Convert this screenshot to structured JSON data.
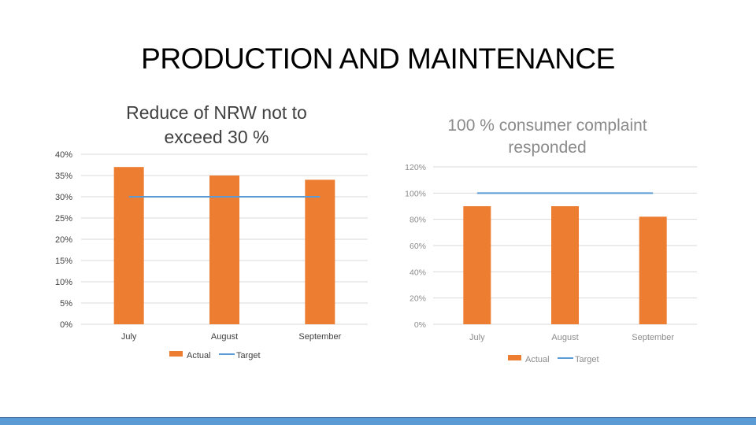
{
  "page": {
    "title": "PRODUCTION AND MAINTENANCE"
  },
  "colors": {
    "bar": "#ED7D31",
    "target_line": "#5B9BD5",
    "grid": "#D9D9D9",
    "footer_bar": "#5B9BD5"
  },
  "chart_data": [
    {
      "type": "bar",
      "title_lines": [
        "Reduce of NRW not to",
        "exceed 30 %"
      ],
      "categories": [
        "July",
        "August",
        "September"
      ],
      "series": [
        {
          "name": "Actual",
          "kind": "bar",
          "values": [
            37,
            35,
            34
          ]
        },
        {
          "name": "Target",
          "kind": "line",
          "values": [
            30,
            30,
            30
          ]
        }
      ],
      "ylim": [
        0,
        40
      ],
      "yticks": [
        0,
        5,
        10,
        15,
        20,
        25,
        30,
        35,
        40
      ],
      "ytick_labels": [
        "0%",
        "5%",
        "10%",
        "15%",
        "20%",
        "25%",
        "30%",
        "35%",
        "40%"
      ],
      "legend_position": "bottom",
      "grid": true
    },
    {
      "type": "bar",
      "title_lines": [
        "100 % consumer complaint",
        "responded"
      ],
      "categories": [
        "July",
        "August",
        "September"
      ],
      "series": [
        {
          "name": "Actual",
          "kind": "bar",
          "values": [
            90,
            90,
            82
          ]
        },
        {
          "name": "Target",
          "kind": "line",
          "values": [
            100,
            100,
            100
          ]
        }
      ],
      "ylim": [
        0,
        120
      ],
      "yticks": [
        0,
        20,
        40,
        60,
        80,
        100,
        120
      ],
      "ytick_labels": [
        "0%",
        "20%",
        "40%",
        "60%",
        "80%",
        "100%",
        "120%"
      ],
      "legend_position": "bottom",
      "grid": true
    }
  ]
}
